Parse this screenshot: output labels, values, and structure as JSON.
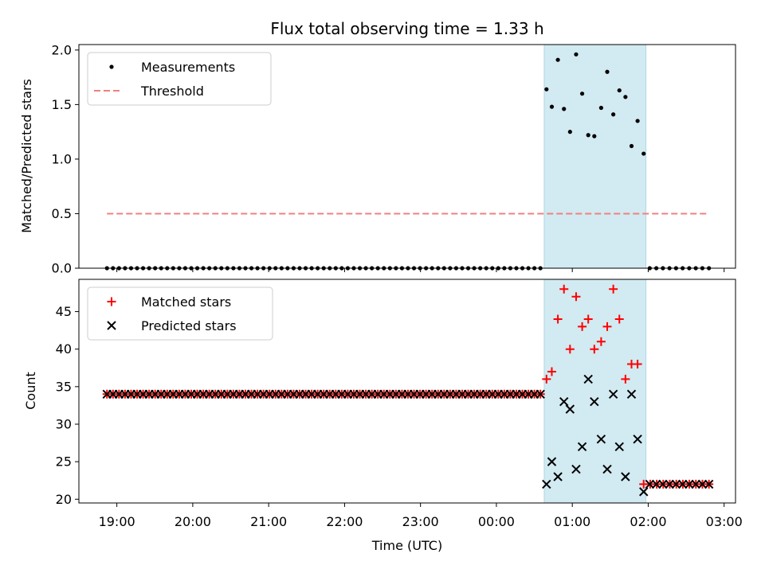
{
  "chart_data": {
    "type": "scatter",
    "title": "Flux total observing time = 1.33 h",
    "xlabel": "Time (UTC)",
    "x_tick_labels": [
      "19:00",
      "20:00",
      "21:00",
      "22:00",
      "23:00",
      "00:00",
      "01:00",
      "02:00",
      "03:00"
    ],
    "x_range_hours": [
      18.5,
      27.15
    ],
    "shaded_region_hours": [
      24.63,
      25.97
    ],
    "shade_color": "#add8e6",
    "panels": [
      {
        "ylabel": "Matched/Predicted stars",
        "ylim": [
          0,
          2.05
        ],
        "y_ticks": [
          "0.0",
          "0.5",
          "1.0",
          "1.5",
          "2.0"
        ],
        "y_tick_values": [
          0,
          0.5,
          1.0,
          1.5,
          2.0
        ],
        "legend_position": "upper-left",
        "series": [
          {
            "name": "Measurements",
            "marker": "dot",
            "color": "#000000",
            "points": [
              [
                24.66,
                1.64
              ],
              [
                24.73,
                1.48
              ],
              [
                24.81,
                1.91
              ],
              [
                24.89,
                1.46
              ],
              [
                24.97,
                1.25
              ],
              [
                25.05,
                1.96
              ],
              [
                25.13,
                1.6
              ],
              [
                25.21,
                1.22
              ],
              [
                25.29,
                1.21
              ],
              [
                25.38,
                1.47
              ],
              [
                25.46,
                1.8
              ],
              [
                25.54,
                1.41
              ],
              [
                25.62,
                1.63
              ],
              [
                25.7,
                1.57
              ],
              [
                25.78,
                1.12
              ],
              [
                25.86,
                1.35
              ],
              [
                25.94,
                1.05
              ]
            ],
            "zero_runs": [
              {
                "start": 18.87,
                "end": 24.58,
                "count": 73,
                "value": 0
              },
              {
                "start": 26.02,
                "end": 26.8,
                "count": 10,
                "value": 0
              }
            ]
          },
          {
            "name": "Threshold",
            "line": "dashed",
            "color": "#f08080",
            "y": 0.5,
            "x_start": 18.87,
            "x_end": 26.8
          }
        ]
      },
      {
        "ylabel": "Count",
        "ylim": [
          19.5,
          49.3
        ],
        "y_ticks": [
          "20",
          "25",
          "30",
          "35",
          "40",
          "45"
        ],
        "y_tick_values": [
          20,
          25,
          30,
          35,
          40,
          45
        ],
        "legend_position": "upper-left",
        "series": [
          {
            "name": "Matched stars",
            "marker": "plus",
            "color": "#ff0000",
            "points": [
              [
                24.66,
                36
              ],
              [
                24.73,
                37
              ],
              [
                24.81,
                44
              ],
              [
                24.89,
                48
              ],
              [
                24.97,
                40
              ],
              [
                25.05,
                47
              ],
              [
                25.13,
                43
              ],
              [
                25.21,
                44
              ],
              [
                25.29,
                40
              ],
              [
                25.38,
                41
              ],
              [
                25.46,
                43
              ],
              [
                25.54,
                48
              ],
              [
                25.62,
                44
              ],
              [
                25.7,
                36
              ],
              [
                25.78,
                38
              ],
              [
                25.86,
                38
              ]
            ],
            "constant_runs": [
              {
                "start": 18.87,
                "end": 24.58,
                "count": 73,
                "value": 34
              },
              {
                "start": 25.94,
                "end": 26.8,
                "count": 11,
                "value": 22
              }
            ]
          },
          {
            "name": "Predicted stars",
            "marker": "x",
            "color": "#000000",
            "points": [
              [
                24.66,
                22
              ],
              [
                24.73,
                25
              ],
              [
                24.81,
                23
              ],
              [
                24.89,
                33
              ],
              [
                24.97,
                32
              ],
              [
                25.05,
                24
              ],
              [
                25.13,
                27
              ],
              [
                25.21,
                36
              ],
              [
                25.29,
                33
              ],
              [
                25.38,
                28
              ],
              [
                25.46,
                24
              ],
              [
                25.54,
                34
              ],
              [
                25.62,
                27
              ],
              [
                25.7,
                23
              ],
              [
                25.78,
                34
              ],
              [
                25.86,
                28
              ],
              [
                25.94,
                21
              ]
            ],
            "constant_runs": [
              {
                "start": 18.87,
                "end": 24.58,
                "count": 73,
                "value": 34
              },
              {
                "start": 26.02,
                "end": 26.8,
                "count": 10,
                "value": 22
              }
            ]
          }
        ]
      }
    ]
  }
}
